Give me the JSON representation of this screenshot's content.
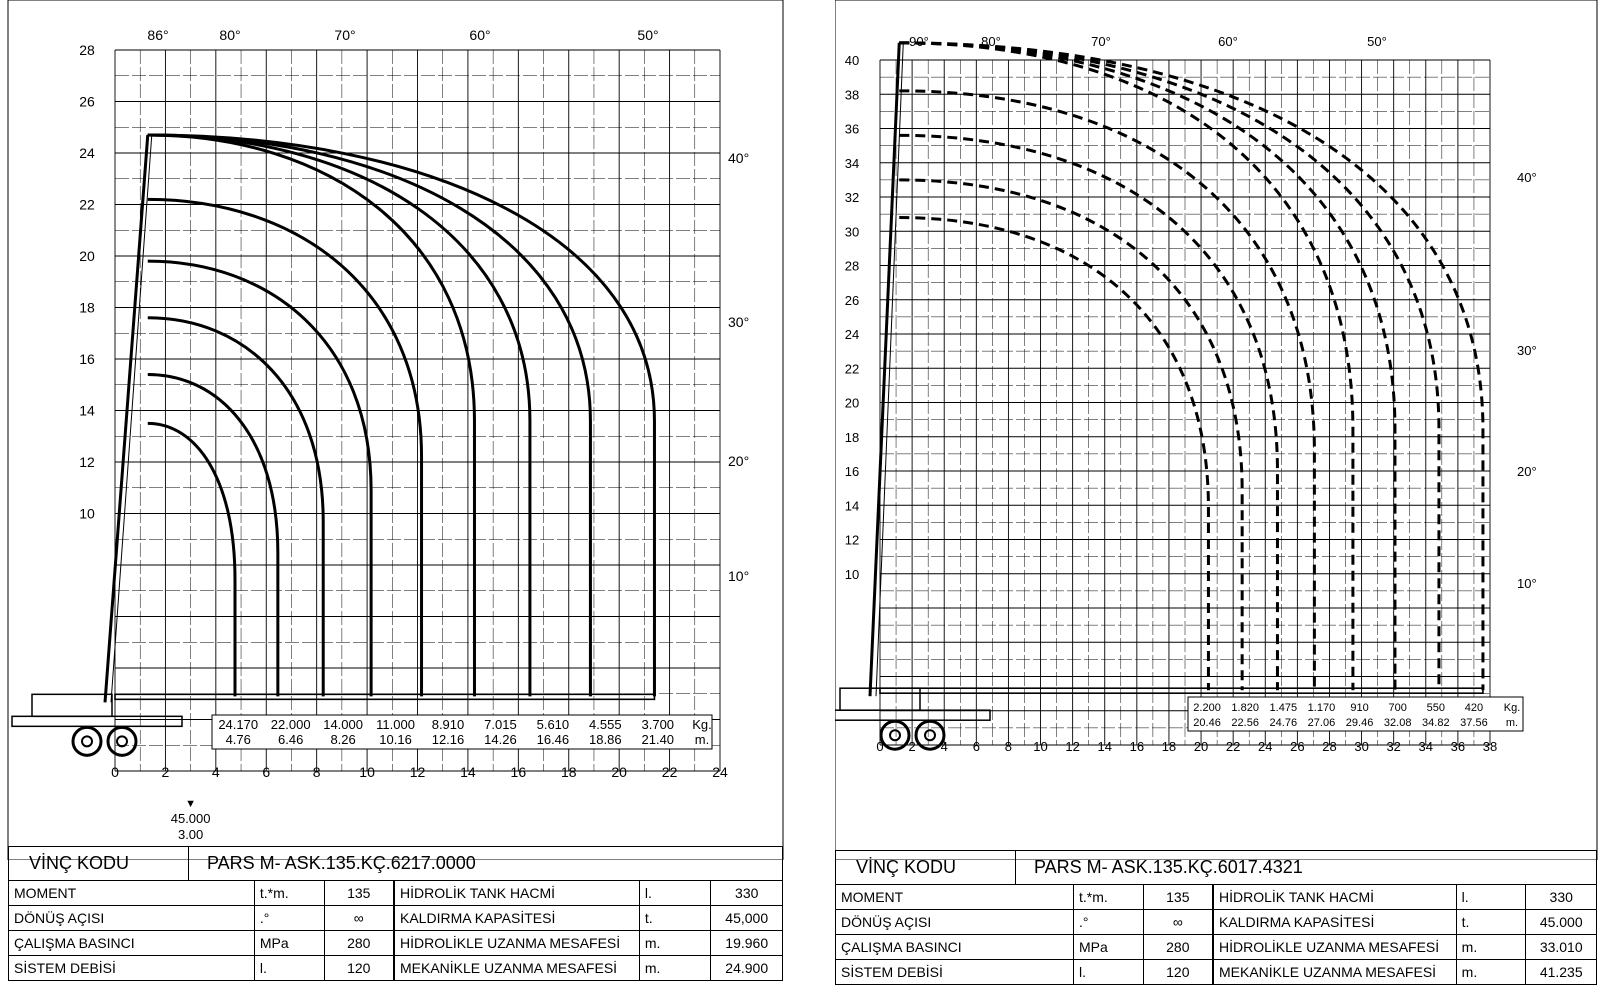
{
  "left": {
    "code_label": "VİNÇ KODU",
    "code_value": "PARS  M- ASK.135.KÇ.6217.0000",
    "specs_left": [
      {
        "label": "MOMENT",
        "unit": "t.*m.",
        "value": "135"
      },
      {
        "label": "DÖNÜŞ AÇISI",
        "unit": ".°",
        "value": "∞"
      },
      {
        "label": "ÇALIŞMA BASINCI",
        "unit": "MPa",
        "value": "280"
      },
      {
        "label": "SİSTEM DEBİSİ",
        "unit": "l.",
        "value": "120"
      }
    ],
    "specs_right": [
      {
        "label": "HİDROLİK TANK HACMİ",
        "unit": "l.",
        "value": "330"
      },
      {
        "label": "KALDIRMA KAPASİTESİ",
        "unit": "t.",
        "value": "45,000"
      },
      {
        "label": "HİDROLİKLE UZANMA MESAFESİ",
        "unit": "m.",
        "value": "19.960"
      },
      {
        "label": "MEKANİKLE UZANMA MESAFESİ",
        "unit": "m.",
        "value": "24.900"
      }
    ],
    "chart_data": {
      "type": "line",
      "x_ticks": [
        0,
        2,
        4,
        6,
        8,
        10,
        12,
        14,
        16,
        18,
        20,
        22,
        24
      ],
      "y_ticks": [
        10,
        12,
        14,
        16,
        18,
        20,
        22,
        24,
        26,
        28
      ],
      "xlim": [
        0,
        24
      ],
      "ylim": [
        0,
        28
      ],
      "top_angles": [
        "86°",
        "80°",
        "70°",
        "60°",
        "50°"
      ],
      "side_angles": [
        "40°",
        "30°",
        "20°",
        "10°"
      ],
      "extra_tick": {
        "value": "45.000",
        "distance": "3.00"
      },
      "unit_kg": "Kg.",
      "unit_m": "m.",
      "loads": [
        "24.170",
        "22.000",
        "14.000",
        "11.000",
        "8.910",
        "7.015",
        "5.610",
        "4.555",
        "3.700"
      ],
      "distances": [
        "4.76",
        "6.46",
        "8.26",
        "10.16",
        "12.16",
        "14.26",
        "16.46",
        "18.86",
        "21.40"
      ],
      "curves": [
        {
          "reach": 4.76,
          "height": 13.5
        },
        {
          "reach": 6.46,
          "height": 15.4
        },
        {
          "reach": 8.26,
          "height": 17.6
        },
        {
          "reach": 10.16,
          "height": 19.8
        },
        {
          "reach": 12.16,
          "height": 22.2
        },
        {
          "reach": 14.26,
          "height": 24.7
        },
        {
          "reach": 16.46,
          "height": 24.7
        },
        {
          "reach": 18.86,
          "height": 24.7
        },
        {
          "reach": 21.4,
          "height": 24.7
        }
      ]
    }
  },
  "right": {
    "code_label": "VİNÇ KODU",
    "code_value": "PARS M- ASK.135.KÇ.6017.4321",
    "specs_left": [
      {
        "label": "MOMENT",
        "unit": "t.*m.",
        "value": "135"
      },
      {
        "label": "DÖNÜŞ AÇISI",
        "unit": ".°",
        "value": "∞"
      },
      {
        "label": "ÇALIŞMA BASINCI",
        "unit": "MPa",
        "value": "280"
      },
      {
        "label": "SİSTEM DEBİSİ",
        "unit": "l.",
        "value": "120"
      }
    ],
    "specs_right": [
      {
        "label": "HİDROLİK TANK HACMİ",
        "unit": "l.",
        "value": "330"
      },
      {
        "label": "KALDIRMA KAPASİTESİ",
        "unit": "t.",
        "value": "45.000"
      },
      {
        "label": "HİDROLİKLE UZANMA MESAFESİ",
        "unit": "m.",
        "value": "33.010"
      },
      {
        "label": "MEKANİKLE UZANMA MESAFESİ",
        "unit": "m.",
        "value": "41.235"
      }
    ],
    "chart_data": {
      "type": "line",
      "x_ticks": [
        0,
        2,
        4,
        6,
        8,
        10,
        12,
        14,
        16,
        18,
        20,
        22,
        24,
        26,
        28,
        30,
        32,
        34,
        36,
        38
      ],
      "y_ticks": [
        10,
        12,
        14,
        16,
        18,
        20,
        22,
        24,
        26,
        28,
        30,
        32,
        34,
        36,
        38,
        40
      ],
      "xlim": [
        0,
        38
      ],
      "ylim": [
        0,
        40
      ],
      "top_angles": [
        "90°",
        "80°",
        "70°",
        "60°",
        "50°"
      ],
      "side_angles": [
        "40°",
        "30°",
        "20°",
        "10°"
      ],
      "unit_kg": "Kg.",
      "unit_m": "m.",
      "loads": [
        "2.200",
        "1.820",
        "1.475",
        "1.170",
        "910",
        "700",
        "550",
        "420"
      ],
      "distances": [
        "20.46",
        "22.56",
        "24.76",
        "27.06",
        "29.46",
        "32.08",
        "34.82",
        "37.56"
      ],
      "curves": [
        {
          "reach": 20.46,
          "height": 30.8
        },
        {
          "reach": 22.56,
          "height": 33.0
        },
        {
          "reach": 24.76,
          "height": 35.6
        },
        {
          "reach": 27.06,
          "height": 38.2
        },
        {
          "reach": 29.46,
          "height": 41.0
        },
        {
          "reach": 32.08,
          "height": 41.0
        },
        {
          "reach": 34.82,
          "height": 41.0
        },
        {
          "reach": 37.56,
          "height": 41.0
        }
      ]
    }
  }
}
